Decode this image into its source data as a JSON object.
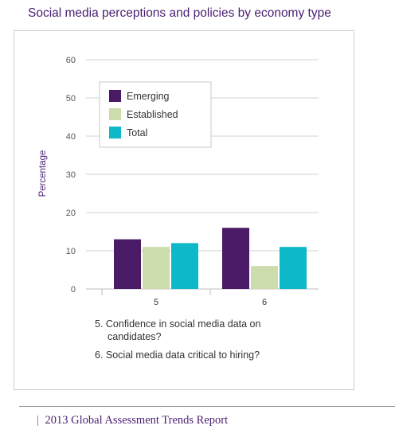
{
  "page": {
    "title": "Social media perceptions and policies by economy type",
    "footer_pipe": "|",
    "footer_text": "2013 Global Assessment Trends Report"
  },
  "chart_data": {
    "type": "bar",
    "title": "Social media perceptions and policies by economy type",
    "xlabel": "",
    "ylabel": "Percentage",
    "categories": [
      "5",
      "6"
    ],
    "series": [
      {
        "name": "Emerging",
        "color": "#4b1a66",
        "values": [
          13,
          16
        ]
      },
      {
        "name": "Established",
        "color": "#ccdcac",
        "values": [
          11,
          6
        ]
      },
      {
        "name": "Total",
        "color": "#0db8c8",
        "values": [
          12,
          11
        ]
      }
    ],
    "ylim": [
      0,
      60
    ],
    "yticks": [
      0,
      10,
      20,
      30,
      40,
      50,
      60
    ],
    "grid": true,
    "legend": "top-left",
    "notes": [
      {
        "num": "5.",
        "text": "Confidence in social media data on",
        "text2": "candidates?"
      },
      {
        "num": "6.",
        "text": "Social media data critical to hiring?"
      }
    ]
  }
}
